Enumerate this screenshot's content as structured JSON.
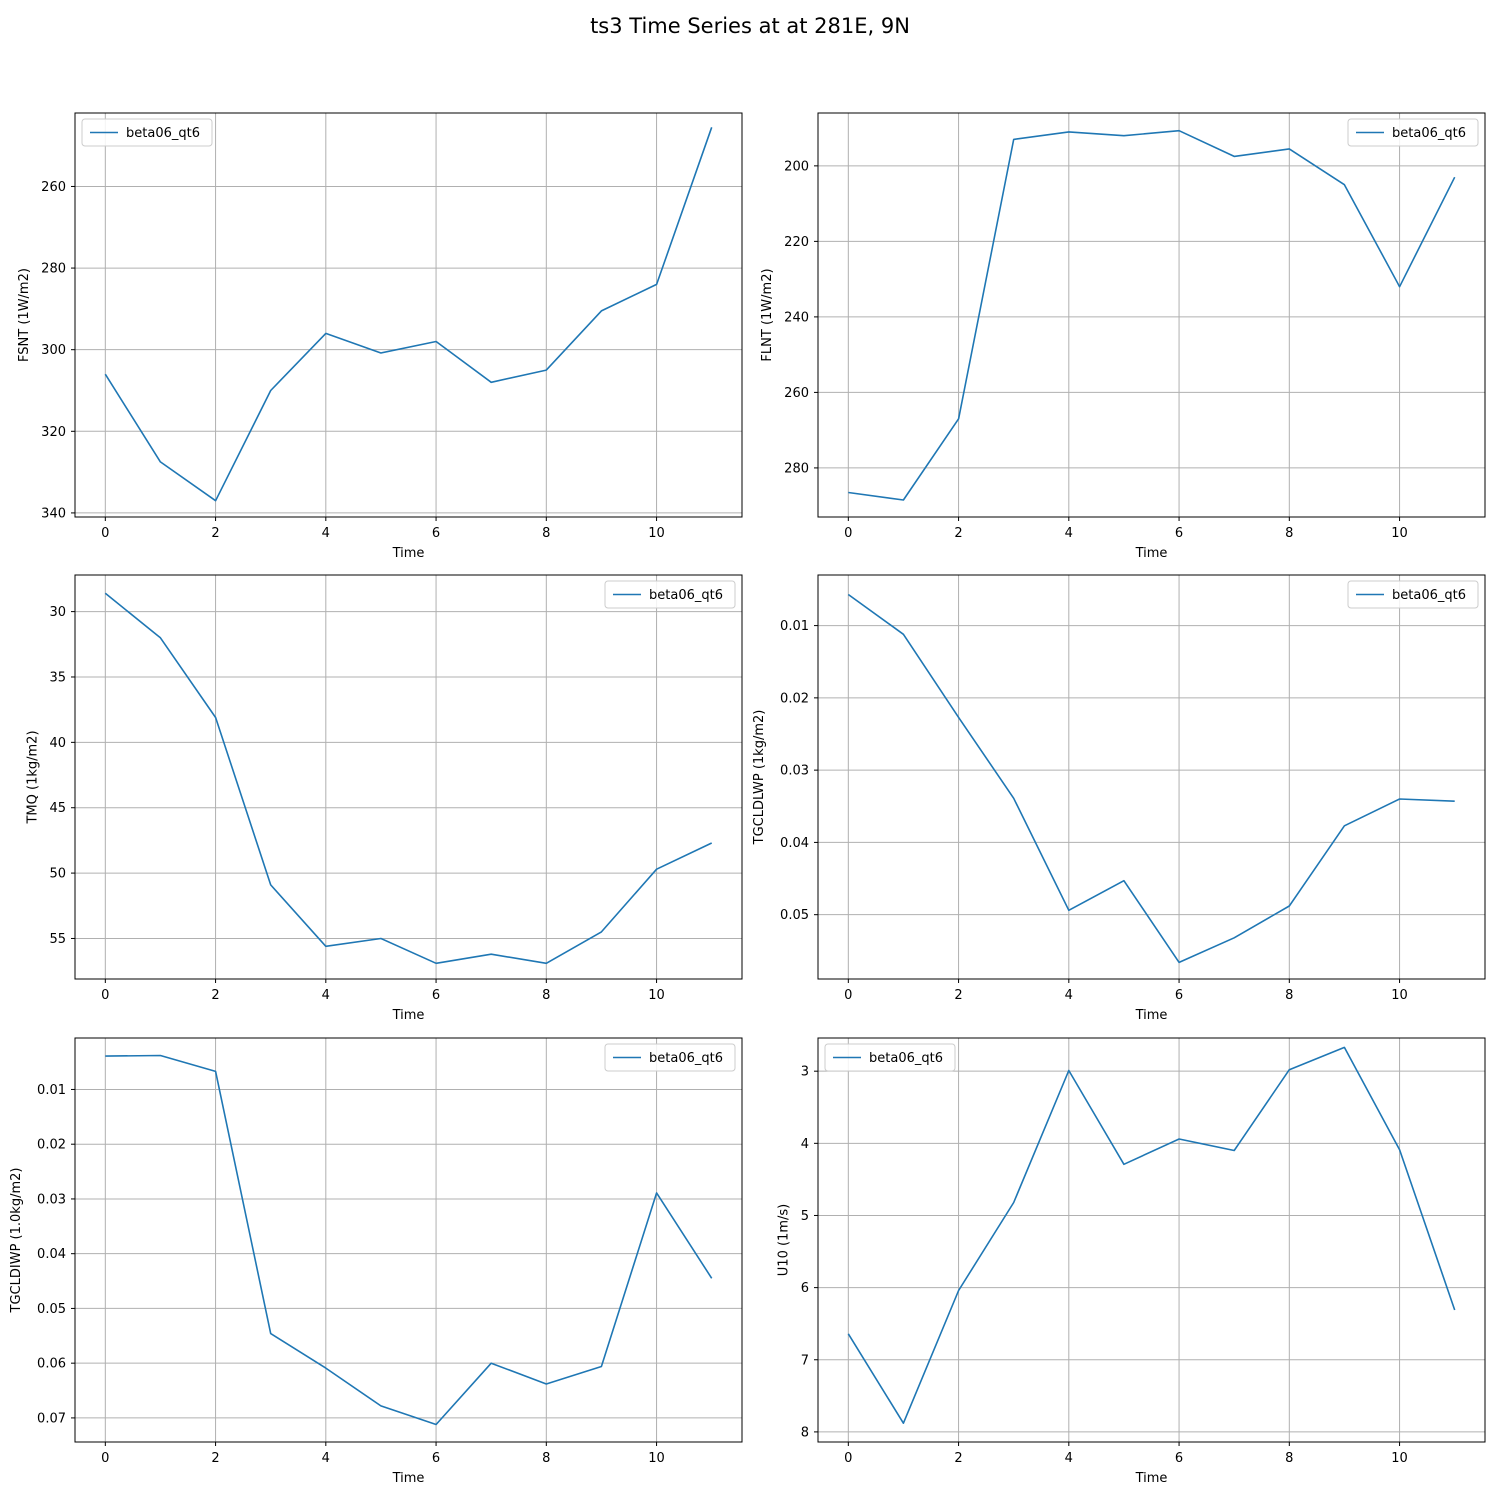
{
  "figure": {
    "title": "ts3 Time Series at at 281E, 9N"
  },
  "colors": {
    "line": "#1f77b4",
    "grid": "#b0b0b0",
    "legend_border": "#cccccc"
  },
  "chart_data": [
    {
      "type": "line",
      "xlabel": "Time",
      "ylabel": "FSNT (1W/m2)",
      "xlim": [
        -0.55,
        11.55
      ],
      "ylim": [
        341,
        242
      ],
      "y_inverted": true,
      "xticks": [
        0,
        2,
        4,
        6,
        8,
        10
      ],
      "yticks": [
        260,
        280,
        300,
        320,
        340
      ],
      "grid": true,
      "legend_position": "upper left",
      "series": [
        {
          "name": "beta06_qt6",
          "x": [
            0,
            1,
            2,
            3,
            4,
            5,
            6,
            7,
            8,
            9,
            10,
            11
          ],
          "y": [
            306,
            327.5,
            337,
            310,
            296,
            300.8,
            298,
            308,
            305,
            290.5,
            284,
            245.5
          ]
        }
      ]
    },
    {
      "type": "line",
      "xlabel": "Time",
      "ylabel": "FLNT (1W/m2)",
      "xlim": [
        -0.55,
        11.55
      ],
      "ylim": [
        293,
        186
      ],
      "y_inverted": true,
      "xticks": [
        0,
        2,
        4,
        6,
        8,
        10
      ],
      "yticks": [
        200,
        220,
        240,
        260,
        280
      ],
      "grid": true,
      "legend_position": "upper right",
      "series": [
        {
          "name": "beta06_qt6",
          "x": [
            0,
            1,
            2,
            3,
            4,
            5,
            6,
            7,
            8,
            9,
            10,
            11
          ],
          "y": [
            286.5,
            288.5,
            267,
            193,
            191,
            192,
            190.7,
            197.5,
            195.5,
            205,
            232,
            203
          ]
        }
      ]
    },
    {
      "type": "line",
      "xlabel": "Time",
      "ylabel": "TMQ (1kg/m2)",
      "xlim": [
        -0.55,
        11.55
      ],
      "ylim": [
        58.1,
        27.2
      ],
      "y_inverted": true,
      "xticks": [
        0,
        2,
        4,
        6,
        8,
        10
      ],
      "yticks": [
        30,
        35,
        40,
        45,
        50,
        55
      ],
      "grid": true,
      "legend_position": "upper right",
      "series": [
        {
          "name": "beta06_qt6",
          "x": [
            0,
            1,
            2,
            3,
            4,
            5,
            6,
            7,
            8,
            9,
            10,
            11
          ],
          "y": [
            28.6,
            32,
            38.1,
            50.9,
            55.6,
            55,
            56.9,
            56.2,
            56.9,
            54.5,
            49.7,
            47.7
          ]
        }
      ]
    },
    {
      "type": "line",
      "xlabel": "Time",
      "ylabel": "TGCLDLWP (1kg/m2)",
      "xlim": [
        -0.55,
        11.55
      ],
      "ylim": [
        0.0589,
        0.003
      ],
      "y_inverted": true,
      "xticks": [
        0,
        2,
        4,
        6,
        8,
        10
      ],
      "yticks": [
        0.01,
        0.02,
        0.03,
        0.04,
        0.05
      ],
      "grid": true,
      "legend_position": "upper right",
      "series": [
        {
          "name": "beta06_qt6",
          "x": [
            0,
            1,
            2,
            3,
            4,
            5,
            6,
            7,
            8,
            9,
            10,
            11
          ],
          "y": [
            0.0057,
            0.0112,
            0.0227,
            0.0339,
            0.0494,
            0.0453,
            0.0566,
            0.0532,
            0.0488,
            0.0377,
            0.034,
            0.0343
          ]
        }
      ]
    },
    {
      "type": "line",
      "xlabel": "Time",
      "ylabel": "TGCLDIWP (1.0kg/m2)",
      "xlim": [
        -0.55,
        11.55
      ],
      "ylim": [
        0.0744,
        0.0006
      ],
      "y_inverted": true,
      "xticks": [
        0,
        2,
        4,
        6,
        8,
        10
      ],
      "yticks": [
        0.01,
        0.02,
        0.03,
        0.04,
        0.05,
        0.06,
        0.07
      ],
      "grid": true,
      "legend_position": "upper right",
      "series": [
        {
          "name": "beta06_qt6",
          "x": [
            0,
            1,
            2,
            3,
            4,
            5,
            6,
            7,
            8,
            9,
            10,
            11
          ],
          "y": [
            0.0039,
            0.0038,
            0.0067,
            0.0546,
            0.0609,
            0.0678,
            0.0712,
            0.06,
            0.0638,
            0.0606,
            0.0289,
            0.0445
          ]
        }
      ]
    },
    {
      "type": "line",
      "xlabel": "Time",
      "ylabel": "U10 (1m/s)",
      "xlim": [
        -0.55,
        11.55
      ],
      "ylim": [
        8.14,
        2.54
      ],
      "y_inverted": true,
      "xticks": [
        0,
        2,
        4,
        6,
        8,
        10
      ],
      "yticks": [
        3,
        4,
        5,
        6,
        7,
        8
      ],
      "grid": true,
      "legend_position": "upper left",
      "series": [
        {
          "name": "beta06_qt6",
          "x": [
            0,
            1,
            2,
            3,
            4,
            5,
            6,
            7,
            8,
            9,
            10,
            11
          ],
          "y": [
            6.64,
            7.88,
            6.04,
            4.82,
            2.99,
            4.29,
            3.94,
            4.1,
            2.98,
            2.67,
            4.09,
            6.31
          ]
        }
      ]
    }
  ]
}
